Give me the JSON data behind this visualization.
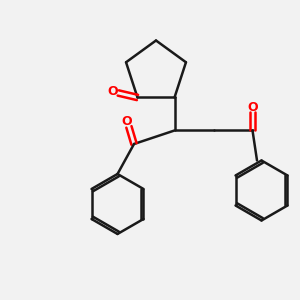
{
  "bg_color": "#f2f2f2",
  "bond_color": "#1a1a1a",
  "oxygen_color": "#ff0000",
  "line_width": 1.8,
  "figsize": [
    3.0,
    3.0
  ],
  "dpi": 100,
  "xlim": [
    0,
    10
  ],
  "ylim": [
    0,
    10
  ]
}
